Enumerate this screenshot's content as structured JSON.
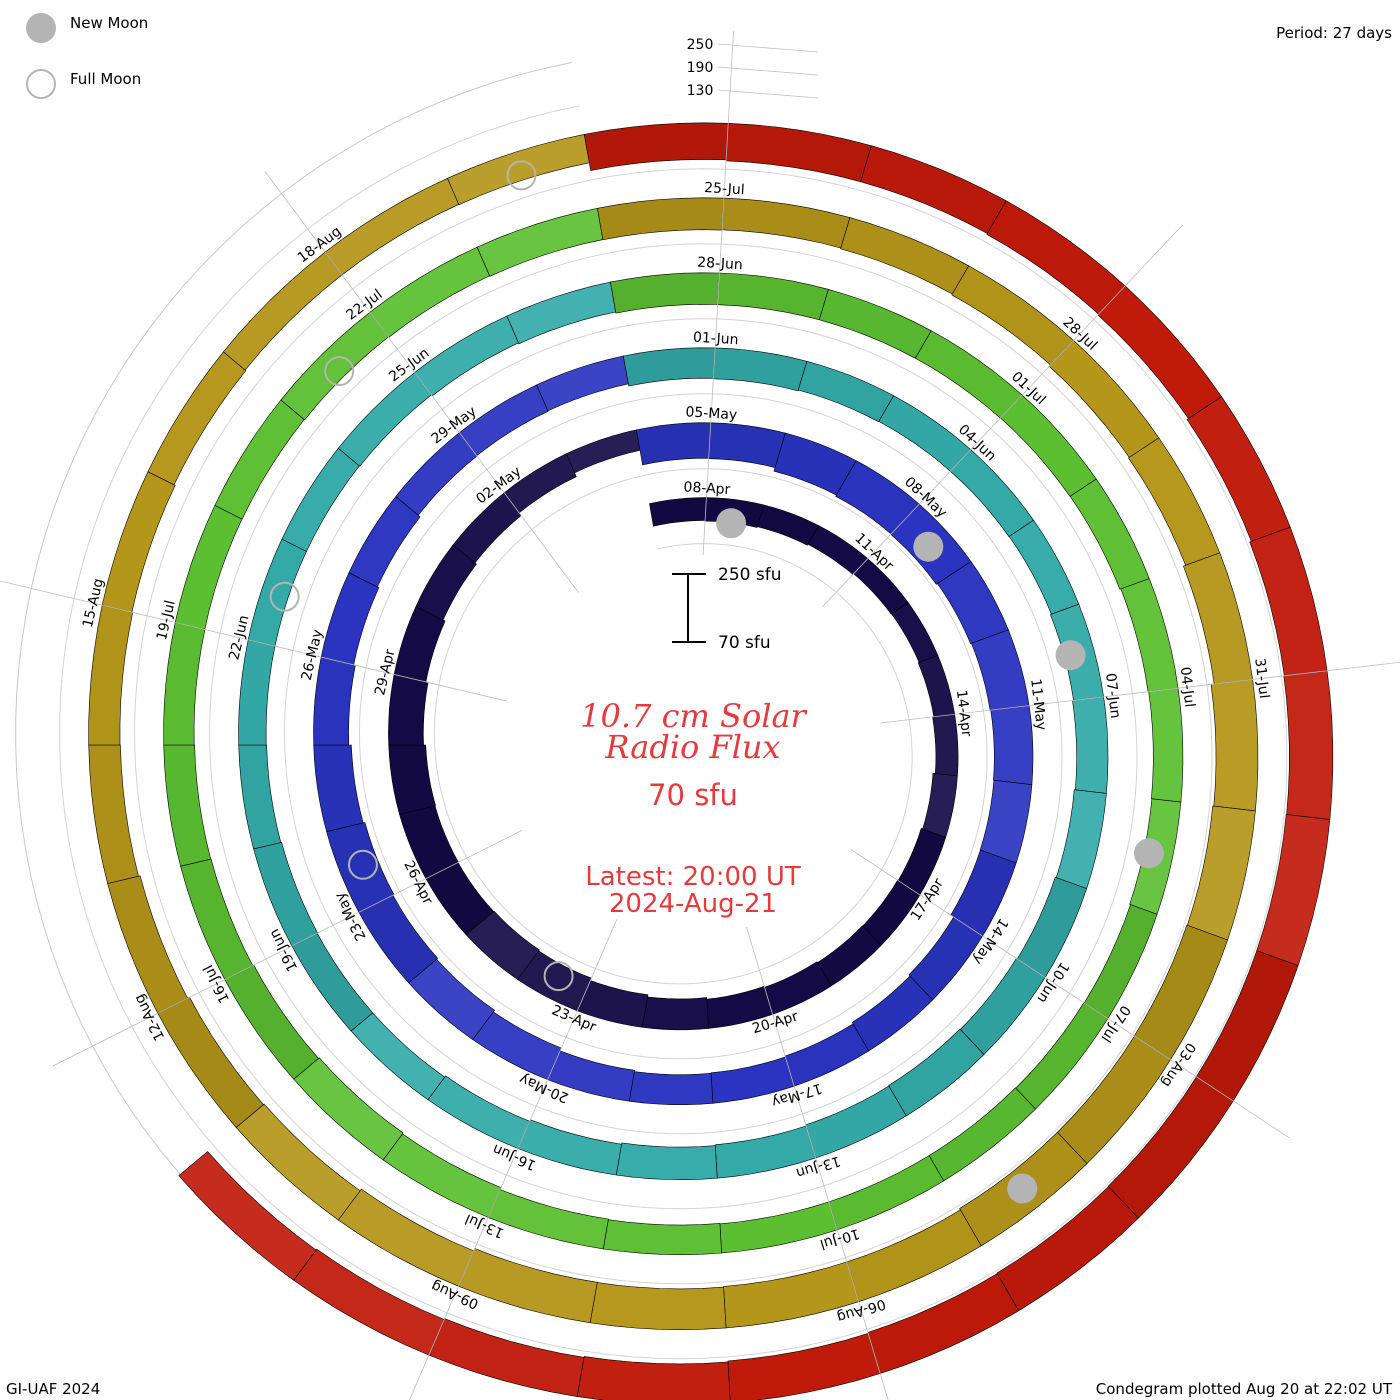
{
  "legend": {
    "new_moon": "New Moon",
    "full_moon": "Full Moon"
  },
  "header": {
    "period": "Period: 27 days"
  },
  "footer": {
    "credit": "GI-UAF 2024",
    "plotted": "Condegram plotted Aug 20 at 22:02 UT"
  },
  "scale_bar": {
    "max_label": "250 sfu",
    "min_label": "70 sfu"
  },
  "title": {
    "line1": "10.7 cm Solar",
    "line2": "Radio Flux",
    "value": "70 sfu",
    "latest": "Latest: 20:00 UT",
    "date": "2024-Aug-21"
  },
  "ring_scale_labels": [
    "250",
    "190",
    "130"
  ],
  "colors": {
    "ring_1": "#140a46",
    "ring_2": "#2a34c0",
    "ring_3": "#33aaa8",
    "ring_4": "#5cbf32",
    "ring_5": "#b4961a",
    "ring_6": "#c01a0a",
    "new_moon": "#b4b4b4",
    "full_moon": "#b4b4b4",
    "title": "#e8393d"
  },
  "chart_data": {
    "type": "condegram",
    "title": "10.7 cm Solar Radio Flux",
    "period_days": 27,
    "units": "sfu",
    "scale_min": 70,
    "scale_max": 250,
    "rotations": [
      {
        "start": "2024-04-07",
        "days": 27,
        "color": "#140a46",
        "values": [
          150,
          153,
          149,
          144,
          139,
          137,
          141,
          147,
          158,
          165,
          168,
          170,
          175,
          180,
          188,
          198,
          210,
          215,
          212,
          214,
          217,
          207,
          196,
          185,
          176,
          160,
          140
        ]
      },
      {
        "start": "2024-05-04",
        "days": 27,
        "color": "#2a34c0",
        "values": [
          210,
          212,
          230,
          236,
          238,
          232,
          228,
          225,
          223,
          222,
          205,
          198,
          190,
          186,
          184,
          190,
          205,
          215,
          222,
          228,
          220,
          208,
          200,
          192,
          180,
          178,
          176
        ]
      },
      {
        "start": "2024-05-31",
        "days": 27,
        "color": "#33aaa8",
        "values": [
          186,
          188,
          184,
          182,
          182,
          180,
          185,
          190,
          195,
          200,
          205,
          208,
          205,
          200,
          196,
          190,
          182,
          175,
          176,
          178,
          174,
          172,
          172,
          172,
          174,
          180,
          185
        ]
      },
      {
        "start": "2024-06-27",
        "days": 27,
        "color": "#5cbf32",
        "values": [
          191,
          192,
          192,
          192,
          191,
          190,
          185,
          182,
          180,
          176,
          178,
          180,
          180,
          180,
          182,
          185,
          195,
          200,
          195,
          190,
          188,
          186,
          185,
          186,
          188,
          190,
          192
        ]
      },
      {
        "start": "2024-07-24",
        "days": 27,
        "color": "#b4961a",
        "values": [
          193,
          192,
          196,
          201,
          210,
          214,
          225,
          240,
          245,
          247,
          246,
          246,
          238,
          238,
          235,
          236,
          224,
          214,
          210,
          200,
          192,
          190,
          186,
          180,
          176,
          176,
          178
        ]
      },
      {
        "start": "2024-08-20",
        "days": 27,
        "color": "#c01a0a",
        "values": [
          215,
          220,
          220,
          225,
          230,
          238,
          246,
          248,
          250,
          250,
          250,
          248,
          245,
          240,
          235,
          230,
          225,
          220
        ]
      }
    ],
    "date_labels": [
      [
        "08-Apr",
        "11-Apr",
        "14-Apr",
        "17-Apr",
        "20-Apr",
        "23-Apr",
        "26-Apr",
        "29-Apr",
        "02-May"
      ],
      [
        "05-May",
        "08-May",
        "11-May",
        "14-May",
        "17-May",
        "20-May",
        "23-May",
        "26-May",
        "29-May"
      ],
      [
        "01-Jun",
        "04-Jun",
        "07-Jun",
        "10-Jun",
        "13-Jun",
        "16-Jun",
        "19-Jun",
        "22-Jun",
        "25-Jun"
      ],
      [
        "28-Jun",
        "01-Jul",
        "04-Jul",
        "07-Jul",
        "10-Jul",
        "13-Jul",
        "16-Jul",
        "19-Jul",
        "22-Jul"
      ],
      [
        "25-Jul",
        "28-Jul",
        "31-Jul",
        "03-Aug",
        "06-Aug",
        "09-Aug",
        "12-Aug",
        "15-Aug",
        "18-Aug"
      ]
    ],
    "new_moons": [
      "2024-04-08",
      "2024-05-08",
      "2024-06-06",
      "2024-07-05",
      "2024-08-04"
    ],
    "full_moons": [
      "2024-04-23",
      "2024-05-23",
      "2024-06-22",
      "2024-07-21",
      "2024-08-19"
    ]
  }
}
